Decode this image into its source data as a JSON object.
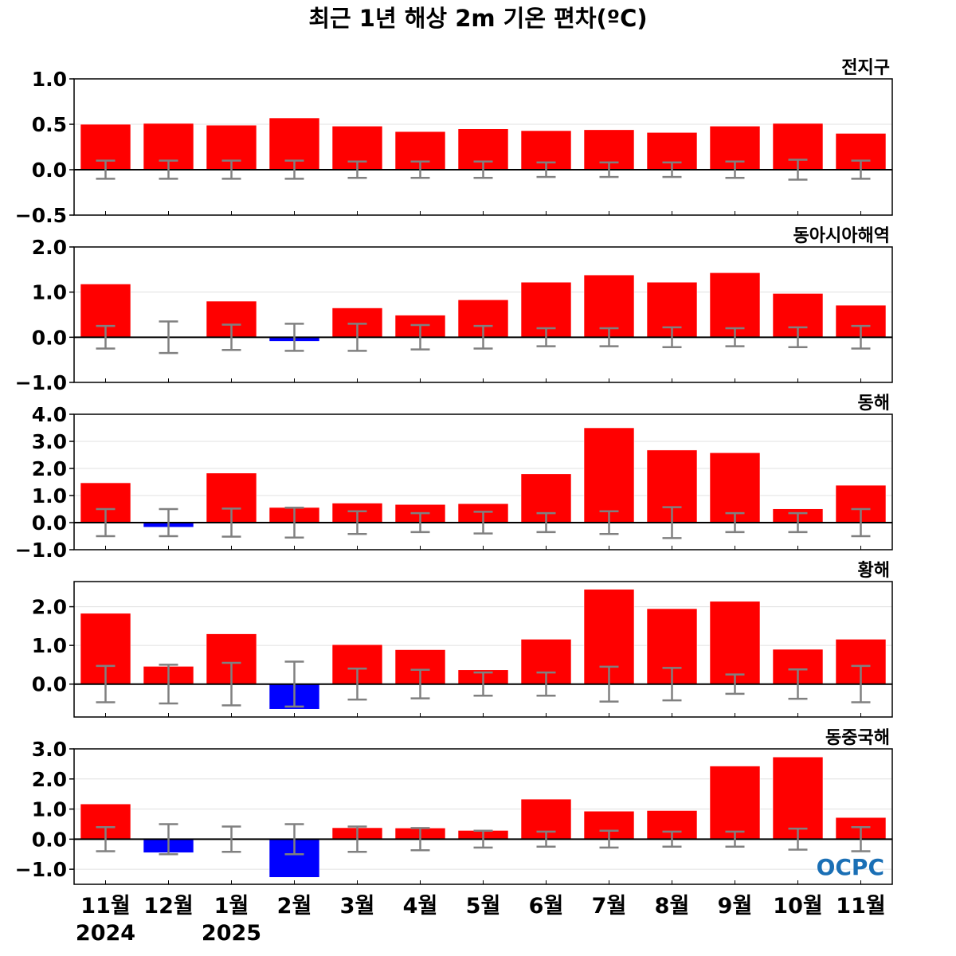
{
  "chart_data": {
    "type": "bar",
    "title": "최근 1년 해상 2m 기온 편차(ºC)",
    "categories": [
      "11월",
      "12월",
      "1월",
      "2월",
      "3월",
      "4월",
      "5월",
      "6월",
      "7월",
      "8월",
      "9월",
      "10월",
      "11월"
    ],
    "year_labels": [
      {
        "index": 0,
        "label": "2024"
      },
      {
        "index": 2,
        "label": "2025"
      }
    ],
    "logo_text": "OCPC",
    "colors": {
      "positive": "#ff0000",
      "negative": "#0000ff",
      "error_bar": "#808080",
      "grid": "#e0e0e0"
    },
    "panels": [
      {
        "name": "전지구",
        "ylim": [
          -0.5,
          1.0
        ],
        "yticks": [
          -0.5,
          0.0,
          0.5,
          1.0
        ],
        "ytick_labels": [
          "−0.5",
          "0.0",
          "0.5",
          "1.0"
        ],
        "values": [
          0.5,
          0.51,
          0.49,
          0.57,
          0.48,
          0.42,
          0.45,
          0.43,
          0.44,
          0.41,
          0.48,
          0.51,
          0.4
        ],
        "error_upper": [
          0.1,
          0.1,
          0.1,
          0.1,
          0.09,
          0.09,
          0.09,
          0.08,
          0.08,
          0.08,
          0.09,
          0.11,
          0.1
        ],
        "error_lower": [
          -0.1,
          -0.1,
          -0.1,
          -0.1,
          -0.09,
          -0.09,
          -0.09,
          -0.08,
          -0.08,
          -0.08,
          -0.09,
          -0.11,
          -0.1
        ]
      },
      {
        "name": "동아시아해역",
        "ylim": [
          -1.0,
          2.0
        ],
        "yticks": [
          -1.0,
          0.0,
          1.0,
          2.0
        ],
        "ytick_labels": [
          "−1.0",
          "0.0",
          "1.0",
          "2.0"
        ],
        "values": [
          1.18,
          0.01,
          0.8,
          -0.09,
          0.65,
          0.49,
          0.83,
          1.22,
          1.38,
          1.22,
          1.43,
          0.97,
          0.71
        ],
        "error_upper": [
          0.25,
          0.35,
          0.28,
          0.3,
          0.3,
          0.27,
          0.25,
          0.2,
          0.2,
          0.22,
          0.2,
          0.22,
          0.25
        ],
        "error_lower": [
          -0.25,
          -0.35,
          -0.28,
          -0.3,
          -0.3,
          -0.27,
          -0.25,
          -0.2,
          -0.2,
          -0.22,
          -0.2,
          -0.22,
          -0.25
        ]
      },
      {
        "name": "동해",
        "ylim": [
          -1.0,
          4.0
        ],
        "yticks": [
          -1.0,
          0.0,
          1.0,
          2.0,
          3.0,
          4.0
        ],
        "ytick_labels": [
          "−1.0",
          "0.0",
          "1.0",
          "2.0",
          "3.0",
          "4.0"
        ],
        "values": [
          1.47,
          -0.17,
          1.83,
          0.56,
          0.72,
          0.67,
          0.7,
          1.8,
          3.5,
          2.68,
          2.58,
          0.51,
          1.38
        ],
        "error_upper": [
          0.5,
          0.5,
          0.52,
          0.55,
          0.42,
          0.35,
          0.4,
          0.35,
          0.42,
          0.57,
          0.35,
          0.35,
          0.5
        ],
        "error_lower": [
          -0.5,
          -0.5,
          -0.52,
          -0.55,
          -0.42,
          -0.35,
          -0.4,
          -0.35,
          -0.42,
          -0.57,
          -0.35,
          -0.35,
          -0.5
        ]
      },
      {
        "name": "황해",
        "ylim": [
          -0.85,
          2.65
        ],
        "yticks": [
          0.0,
          1.0,
          2.0
        ],
        "ytick_labels": [
          "0.0",
          "1.0",
          "2.0"
        ],
        "values": [
          1.83,
          0.46,
          1.3,
          -0.65,
          1.02,
          0.89,
          0.37,
          1.16,
          2.45,
          1.95,
          2.14,
          0.9,
          1.16
        ],
        "error_upper": [
          0.47,
          0.5,
          0.55,
          0.58,
          0.4,
          0.37,
          0.3,
          0.3,
          0.45,
          0.42,
          0.25,
          0.38,
          0.47
        ],
        "error_lower": [
          -0.47,
          -0.5,
          -0.55,
          -0.58,
          -0.4,
          -0.37,
          -0.3,
          -0.3,
          -0.45,
          -0.42,
          -0.25,
          -0.38,
          -0.47
        ]
      },
      {
        "name": "동중국해",
        "ylim": [
          -1.5,
          3.0
        ],
        "yticks": [
          -1.0,
          0.0,
          1.0,
          2.0,
          3.0
        ],
        "ytick_labels": [
          "−1.0",
          "0.0",
          "1.0",
          "2.0",
          "3.0"
        ],
        "values": [
          1.17,
          -0.45,
          0.03,
          -1.27,
          0.38,
          0.37,
          0.29,
          1.33,
          0.93,
          0.95,
          2.43,
          2.73,
          0.72
        ],
        "error_upper": [
          0.4,
          0.5,
          0.42,
          0.5,
          0.42,
          0.37,
          0.28,
          0.25,
          0.28,
          0.25,
          0.25,
          0.35,
          0.4
        ],
        "error_lower": [
          -0.4,
          -0.5,
          -0.42,
          -0.5,
          -0.42,
          -0.37,
          -0.28,
          -0.25,
          -0.28,
          -0.25,
          -0.25,
          -0.35,
          -0.4
        ]
      }
    ]
  }
}
